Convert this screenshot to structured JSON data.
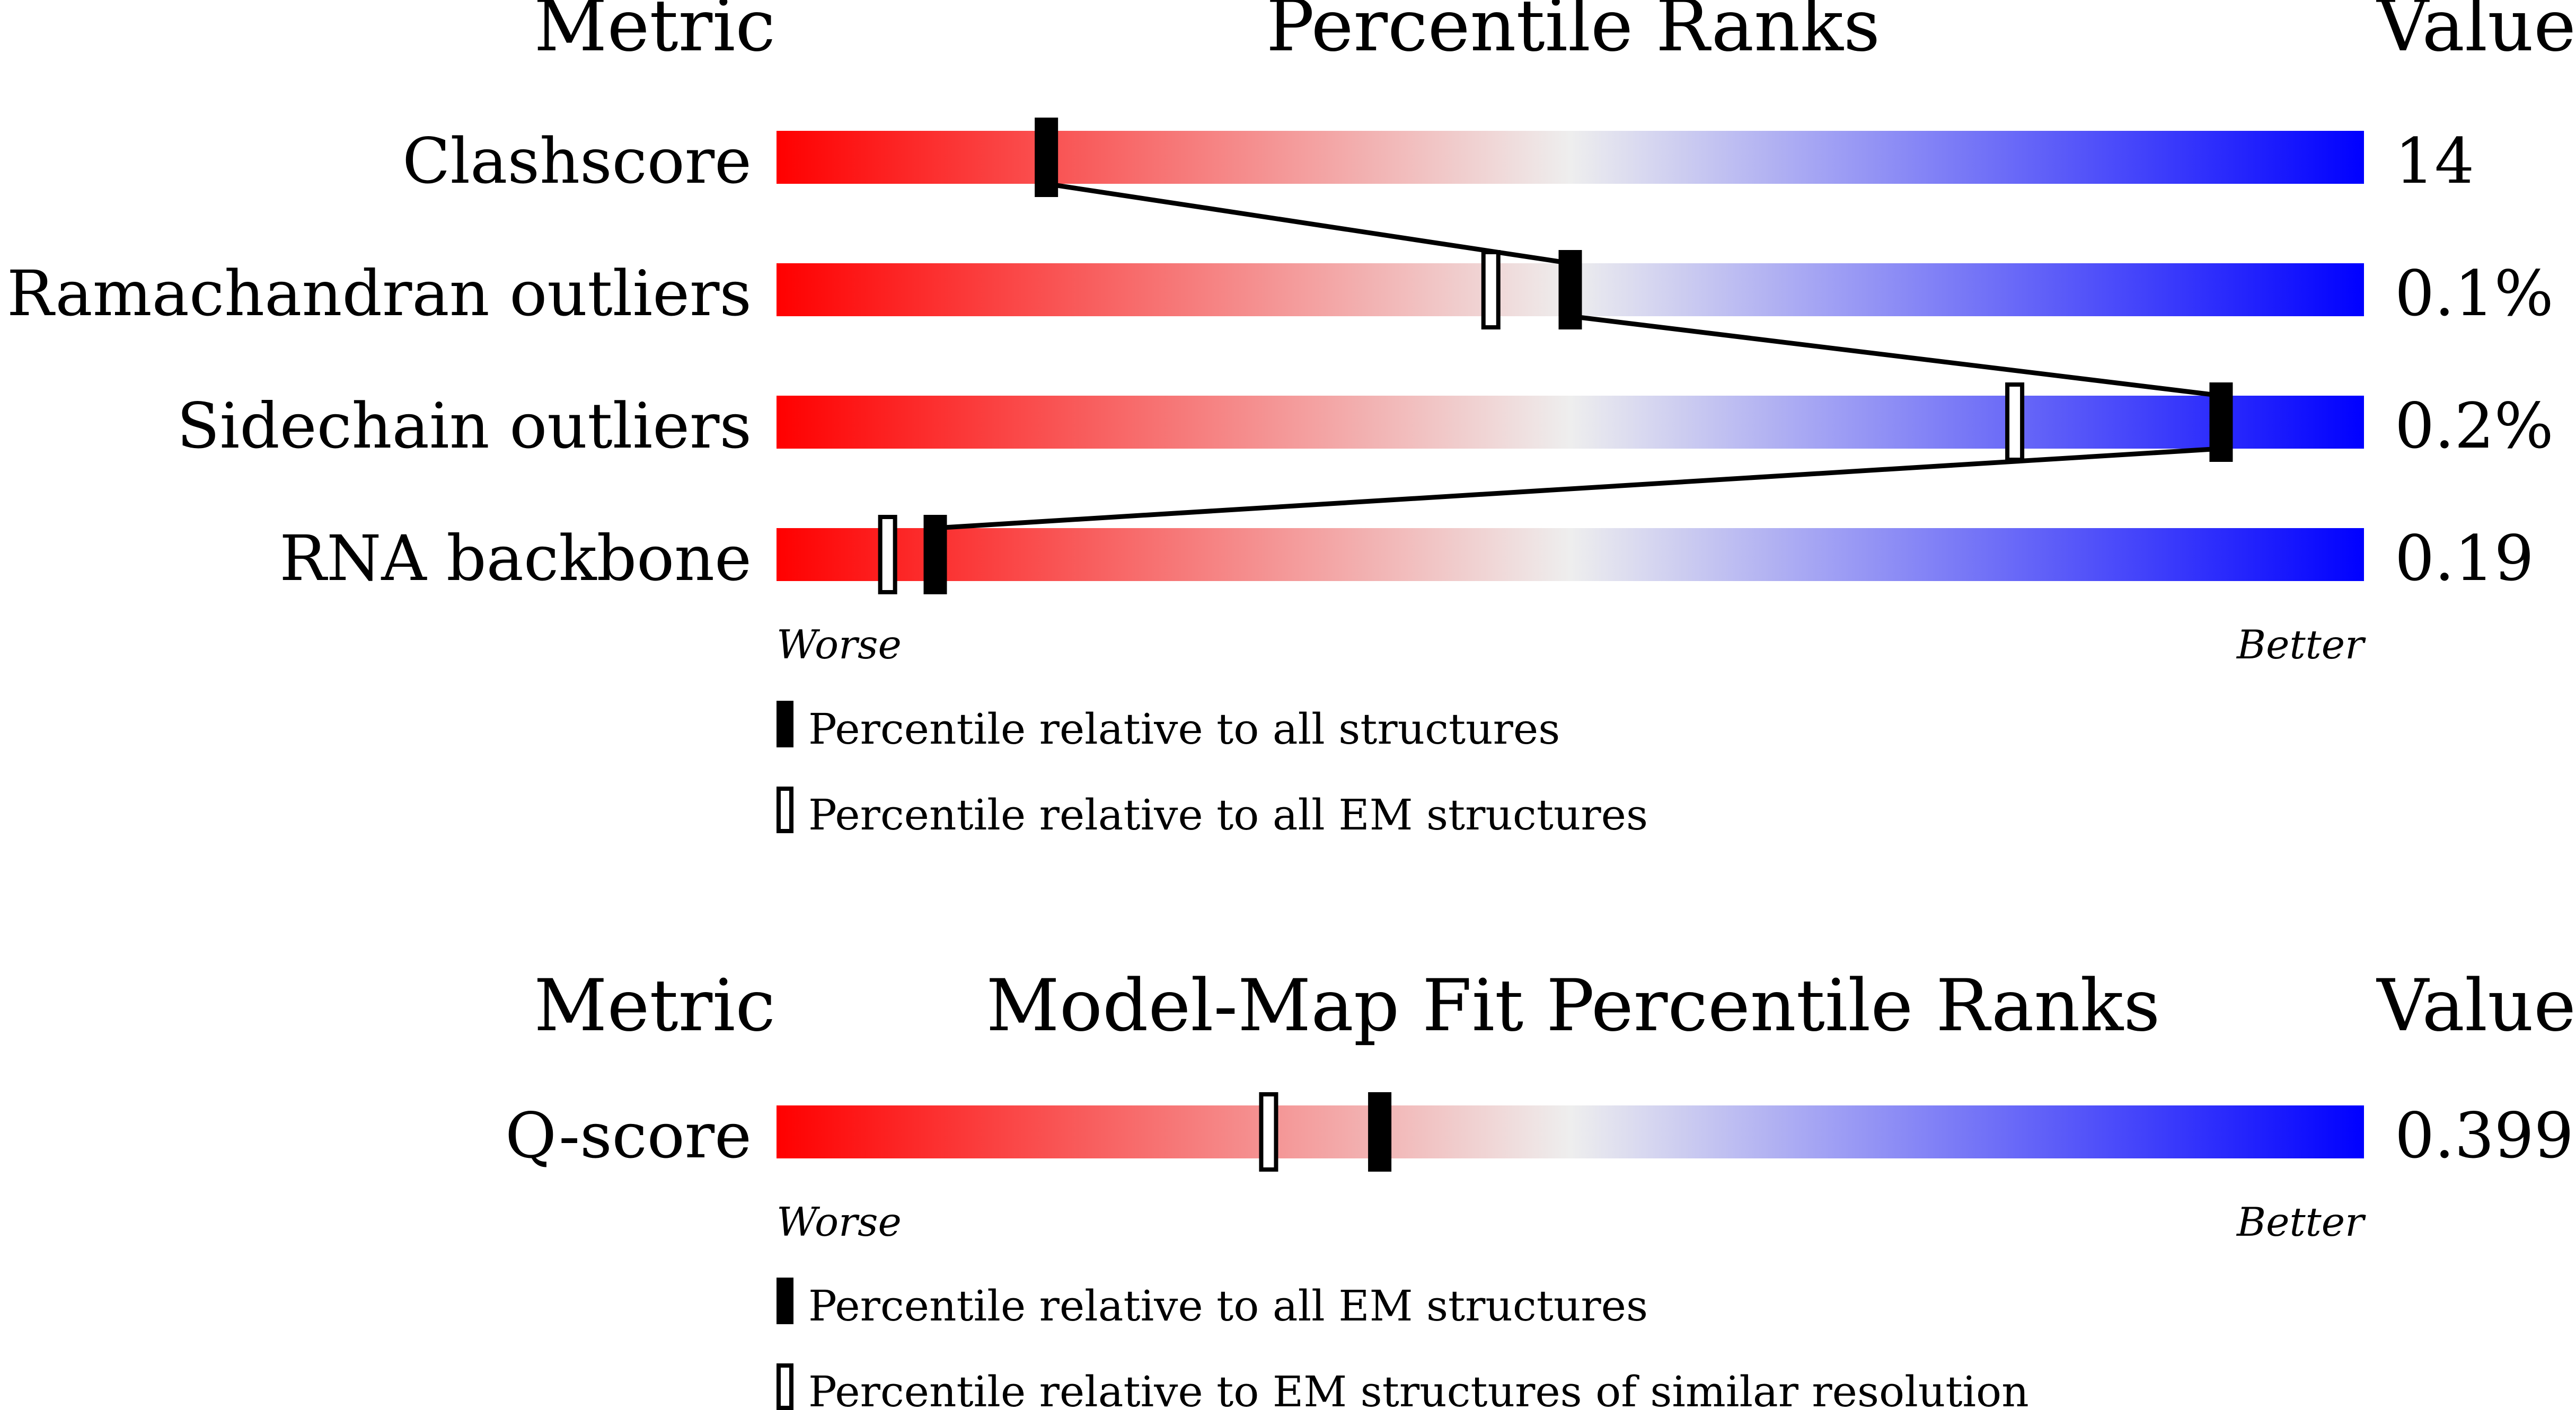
{
  "chart_data": [
    {
      "type": "percentile-bar",
      "headers": {
        "metric": "Metric",
        "title": "Percentile Ranks",
        "value": "Value"
      },
      "axis": {
        "left": "Worse",
        "right": "Better",
        "range": [
          0,
          100
        ]
      },
      "rows": [
        {
          "metric": "Clashscore",
          "value": "14",
          "all_percentile": 17
        },
        {
          "metric": "Ramachandran outliers",
          "value": "0.1%",
          "em_percentile": 45,
          "all_percentile": 50
        },
        {
          "metric": "Sidechain outliers",
          "value": "0.2%",
          "em_percentile": 78,
          "all_percentile": 91
        },
        {
          "metric": "RNA backbone",
          "value": "0.19",
          "em_percentile": 7,
          "all_percentile": 10
        }
      ],
      "connect_all_markers": true,
      "legend": [
        {
          "marker": "filled",
          "label": "Percentile relative to all structures"
        },
        {
          "marker": "open",
          "label": "Percentile relative to all EM structures"
        }
      ]
    },
    {
      "type": "percentile-bar",
      "headers": {
        "metric": "Metric",
        "title": "Model-Map Fit Percentile Ranks",
        "value": "Value"
      },
      "axis": {
        "left": "Worse",
        "right": "Better",
        "range": [
          0,
          100
        ]
      },
      "rows": [
        {
          "metric": "Q-score",
          "value": "0.399",
          "em_percentile": 31,
          "all_percentile": 38
        }
      ],
      "connect_all_markers": false,
      "legend": [
        {
          "marker": "filled",
          "label": "Percentile relative to all EM structures"
        },
        {
          "marker": "open",
          "label": "Percentile relative to EM structures of similar resolution"
        }
      ]
    }
  ],
  "colors": {
    "worse": "#ff0000",
    "middle": "#eeeeee",
    "better": "#0000ff",
    "marker": "#000000"
  }
}
